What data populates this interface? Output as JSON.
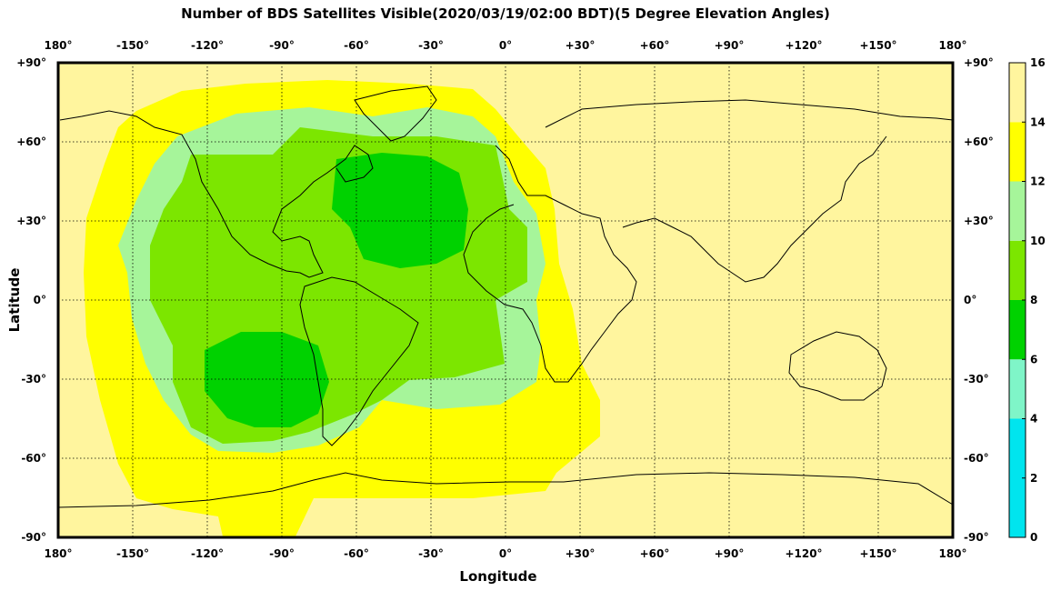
{
  "title": "Number of BDS Satellites Visible(2020/03/19/02:00 BDT)(5 Degree Elevation Angles)",
  "xlabel": "Longitude",
  "ylabel": "Latitude",
  "lon_ticks": [
    "180°",
    "-150°",
    "-120°",
    "-90°",
    "-60°",
    "-30°",
    "0°",
    "+30°",
    "+60°",
    "+90°",
    "+120°",
    "+150°",
    "180°"
  ],
  "lat_ticks": [
    "+90°",
    "+60°",
    "+30°",
    "0°",
    "-30°",
    "-60°",
    "-90°"
  ],
  "colorbar": {
    "ticks": [
      "0",
      "2",
      "4",
      "6",
      "8",
      "10",
      "12",
      "14",
      "16"
    ],
    "bands": [
      {
        "from": 0,
        "to": 4,
        "color": "#00e5ee"
      },
      {
        "from": 4,
        "to": 6,
        "color": "#7ff5c8"
      },
      {
        "from": 6,
        "to": 8,
        "color": "#00d200"
      },
      {
        "from": 8,
        "to": 10,
        "color": "#7ce600"
      },
      {
        "from": 10,
        "to": 12,
        "color": "#a6f59a"
      },
      {
        "from": 12,
        "to": 14,
        "color": "#ffff00"
      },
      {
        "from": 14,
        "to": 16,
        "color": "#fff59e"
      }
    ]
  },
  "chart_data": {
    "type": "heatmap",
    "title": "Number of BDS Satellites Visible(2020/03/19/02:00 BDT)(5 Degree Elevation Angles)",
    "xlabel": "Longitude",
    "ylabel": "Latitude",
    "xlim": [
      -180,
      180
    ],
    "ylim": [
      -90,
      90
    ],
    "grid": true,
    "value_range": [
      0,
      16
    ],
    "regions": [
      {
        "count_range": [
          12,
          14
        ],
        "lon": [
          -165,
          25
        ],
        "lat": [
          -85,
          85
        ]
      },
      {
        "count_range": [
          10,
          12
        ],
        "lon": [
          -155,
          15
        ],
        "lat": [
          -55,
          70
        ]
      },
      {
        "count_range": [
          8,
          10
        ],
        "lon": [
          -140,
          0
        ],
        "lat": [
          -50,
          55
        ]
      },
      {
        "count_range": [
          6,
          8
        ],
        "lon": [
          -70,
          -15
        ],
        "lat": [
          10,
          55
        ]
      },
      {
        "count_range": [
          6,
          8
        ],
        "lon": [
          -115,
          -65
        ],
        "lat": [
          -50,
          -10
        ]
      }
    ]
  }
}
